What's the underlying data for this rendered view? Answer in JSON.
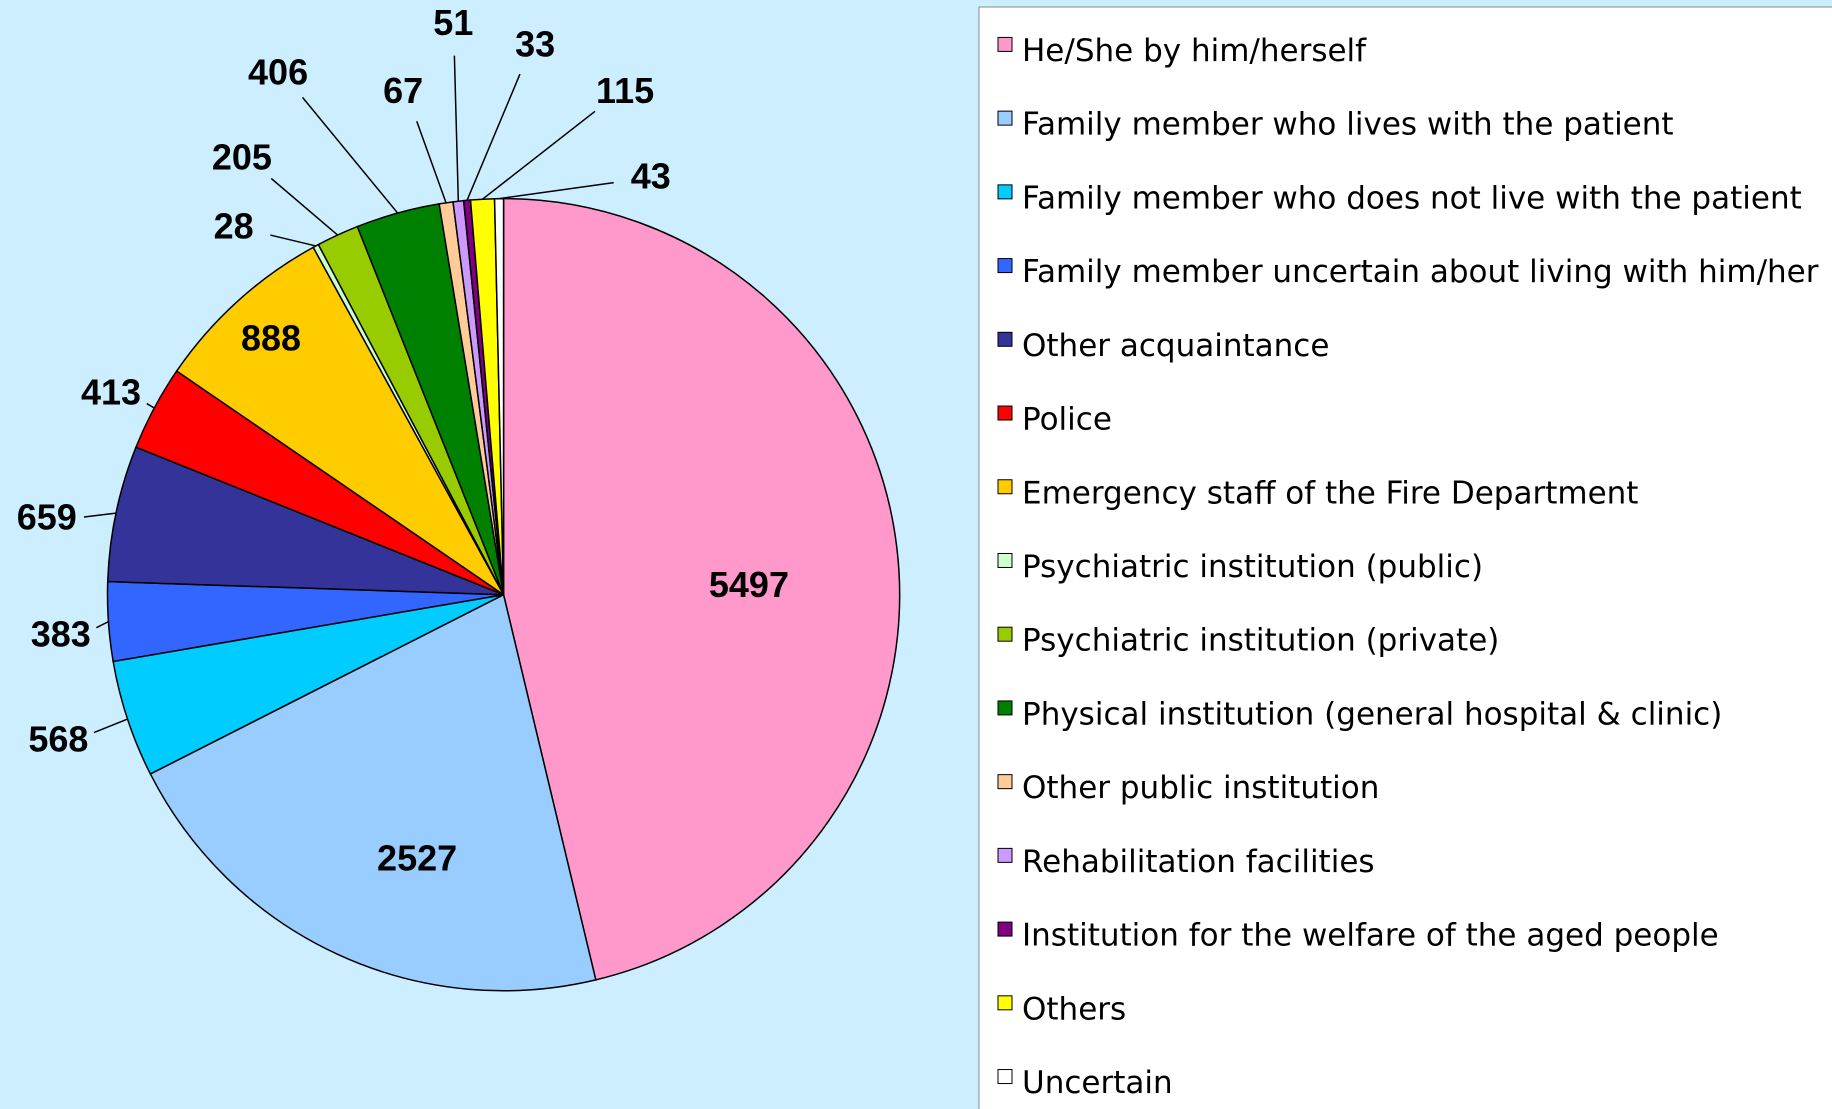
{
  "chart_data": {
    "type": "pie",
    "categories": [
      "He/She by him/herself",
      "Family member who lives with the patient",
      "Family member who does not live with the patient",
      "Family member uncertain about living with him/her",
      "Other acquaintance",
      "Police",
      "Emergency staff of the Fire Department",
      "Psychiatric institution (public)",
      "Psychiatric institution (private)",
      "Physical institution (general hospital & clinic)",
      "Other public institution",
      "Rehabilitation facilities",
      "Institution for the welfare of the aged people",
      "Others",
      "Uncertain"
    ],
    "values": [
      5497,
      2527,
      568,
      383,
      659,
      413,
      888,
      28,
      205,
      406,
      67,
      51,
      33,
      115,
      43
    ],
    "colors": [
      "#ff99cc",
      "#99ccff",
      "#00ccff",
      "#3366ff",
      "#333399",
      "#ff0000",
      "#ffcc00",
      "#ccffcc",
      "#99cc00",
      "#008000",
      "#ffcc99",
      "#cc99ff",
      "#800080",
      "#ffff00",
      "#ffffff"
    ],
    "legend": "right"
  }
}
